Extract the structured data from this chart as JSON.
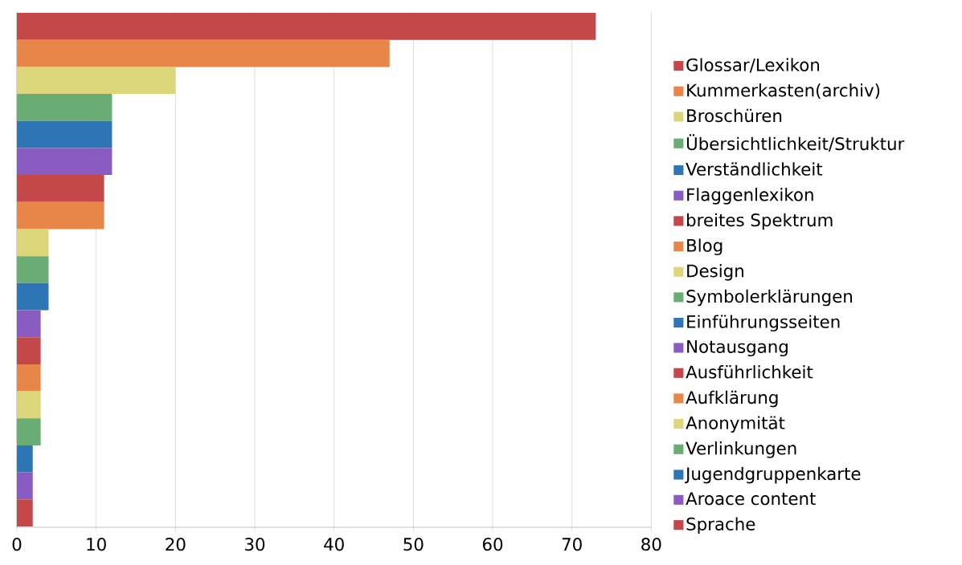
{
  "chart_data": {
    "type": "bar",
    "orientation": "horizontal",
    "categories": [
      null
    ],
    "series": [
      {
        "name": "Glossar/Lexikon",
        "color": "#c4474a",
        "values": [
          73
        ]
      },
      {
        "name": "Kummerkasten(archiv)",
        "color": "#e8864a",
        "values": [
          47
        ]
      },
      {
        "name": "Broschüren",
        "color": "#dcd67a",
        "values": [
          20
        ]
      },
      {
        "name": "Übersichtlichkeit/Struktur",
        "color": "#6aad74",
        "values": [
          12
        ]
      },
      {
        "name": "Verständlichkeit",
        "color": "#2e75b6",
        "values": [
          12
        ]
      },
      {
        "name": "Flaggenlexikon",
        "color": "#8a5cc2",
        "values": [
          12
        ]
      },
      {
        "name": "breites Spektrum",
        "color": "#c4474a",
        "values": [
          11
        ]
      },
      {
        "name": "Blog",
        "color": "#e8864a",
        "values": [
          11
        ]
      },
      {
        "name": "Design",
        "color": "#dcd67a",
        "values": [
          4
        ]
      },
      {
        "name": "Symbolerklärungen",
        "color": "#6aad74",
        "values": [
          4
        ]
      },
      {
        "name": "Einführungsseiten",
        "color": "#2e75b6",
        "values": [
          4
        ]
      },
      {
        "name": "Notausgang",
        "color": "#8a5cc2",
        "values": [
          3
        ]
      },
      {
        "name": "Ausführlichkeit",
        "color": "#c4474a",
        "values": [
          3
        ]
      },
      {
        "name": "Aufklärung",
        "color": "#e8864a",
        "values": [
          3
        ]
      },
      {
        "name": "Anonymität",
        "color": "#dcd67a",
        "values": [
          3
        ]
      },
      {
        "name": "Verlinkungen",
        "color": "#6aad74",
        "values": [
          3
        ]
      },
      {
        "name": "Jugendgruppenkarte",
        "color": "#2e75b6",
        "values": [
          2
        ]
      },
      {
        "name": "Aroace content",
        "color": "#8a5cc2",
        "values": [
          2
        ]
      },
      {
        "name": "Sprache",
        "color": "#c4474a",
        "values": [
          2
        ]
      }
    ],
    "xlim": [
      0,
      80
    ],
    "xticks": [
      0,
      10,
      20,
      30,
      40,
      50,
      60,
      70,
      80
    ],
    "grid": "x",
    "legend": "right",
    "tick_labels": "x"
  }
}
